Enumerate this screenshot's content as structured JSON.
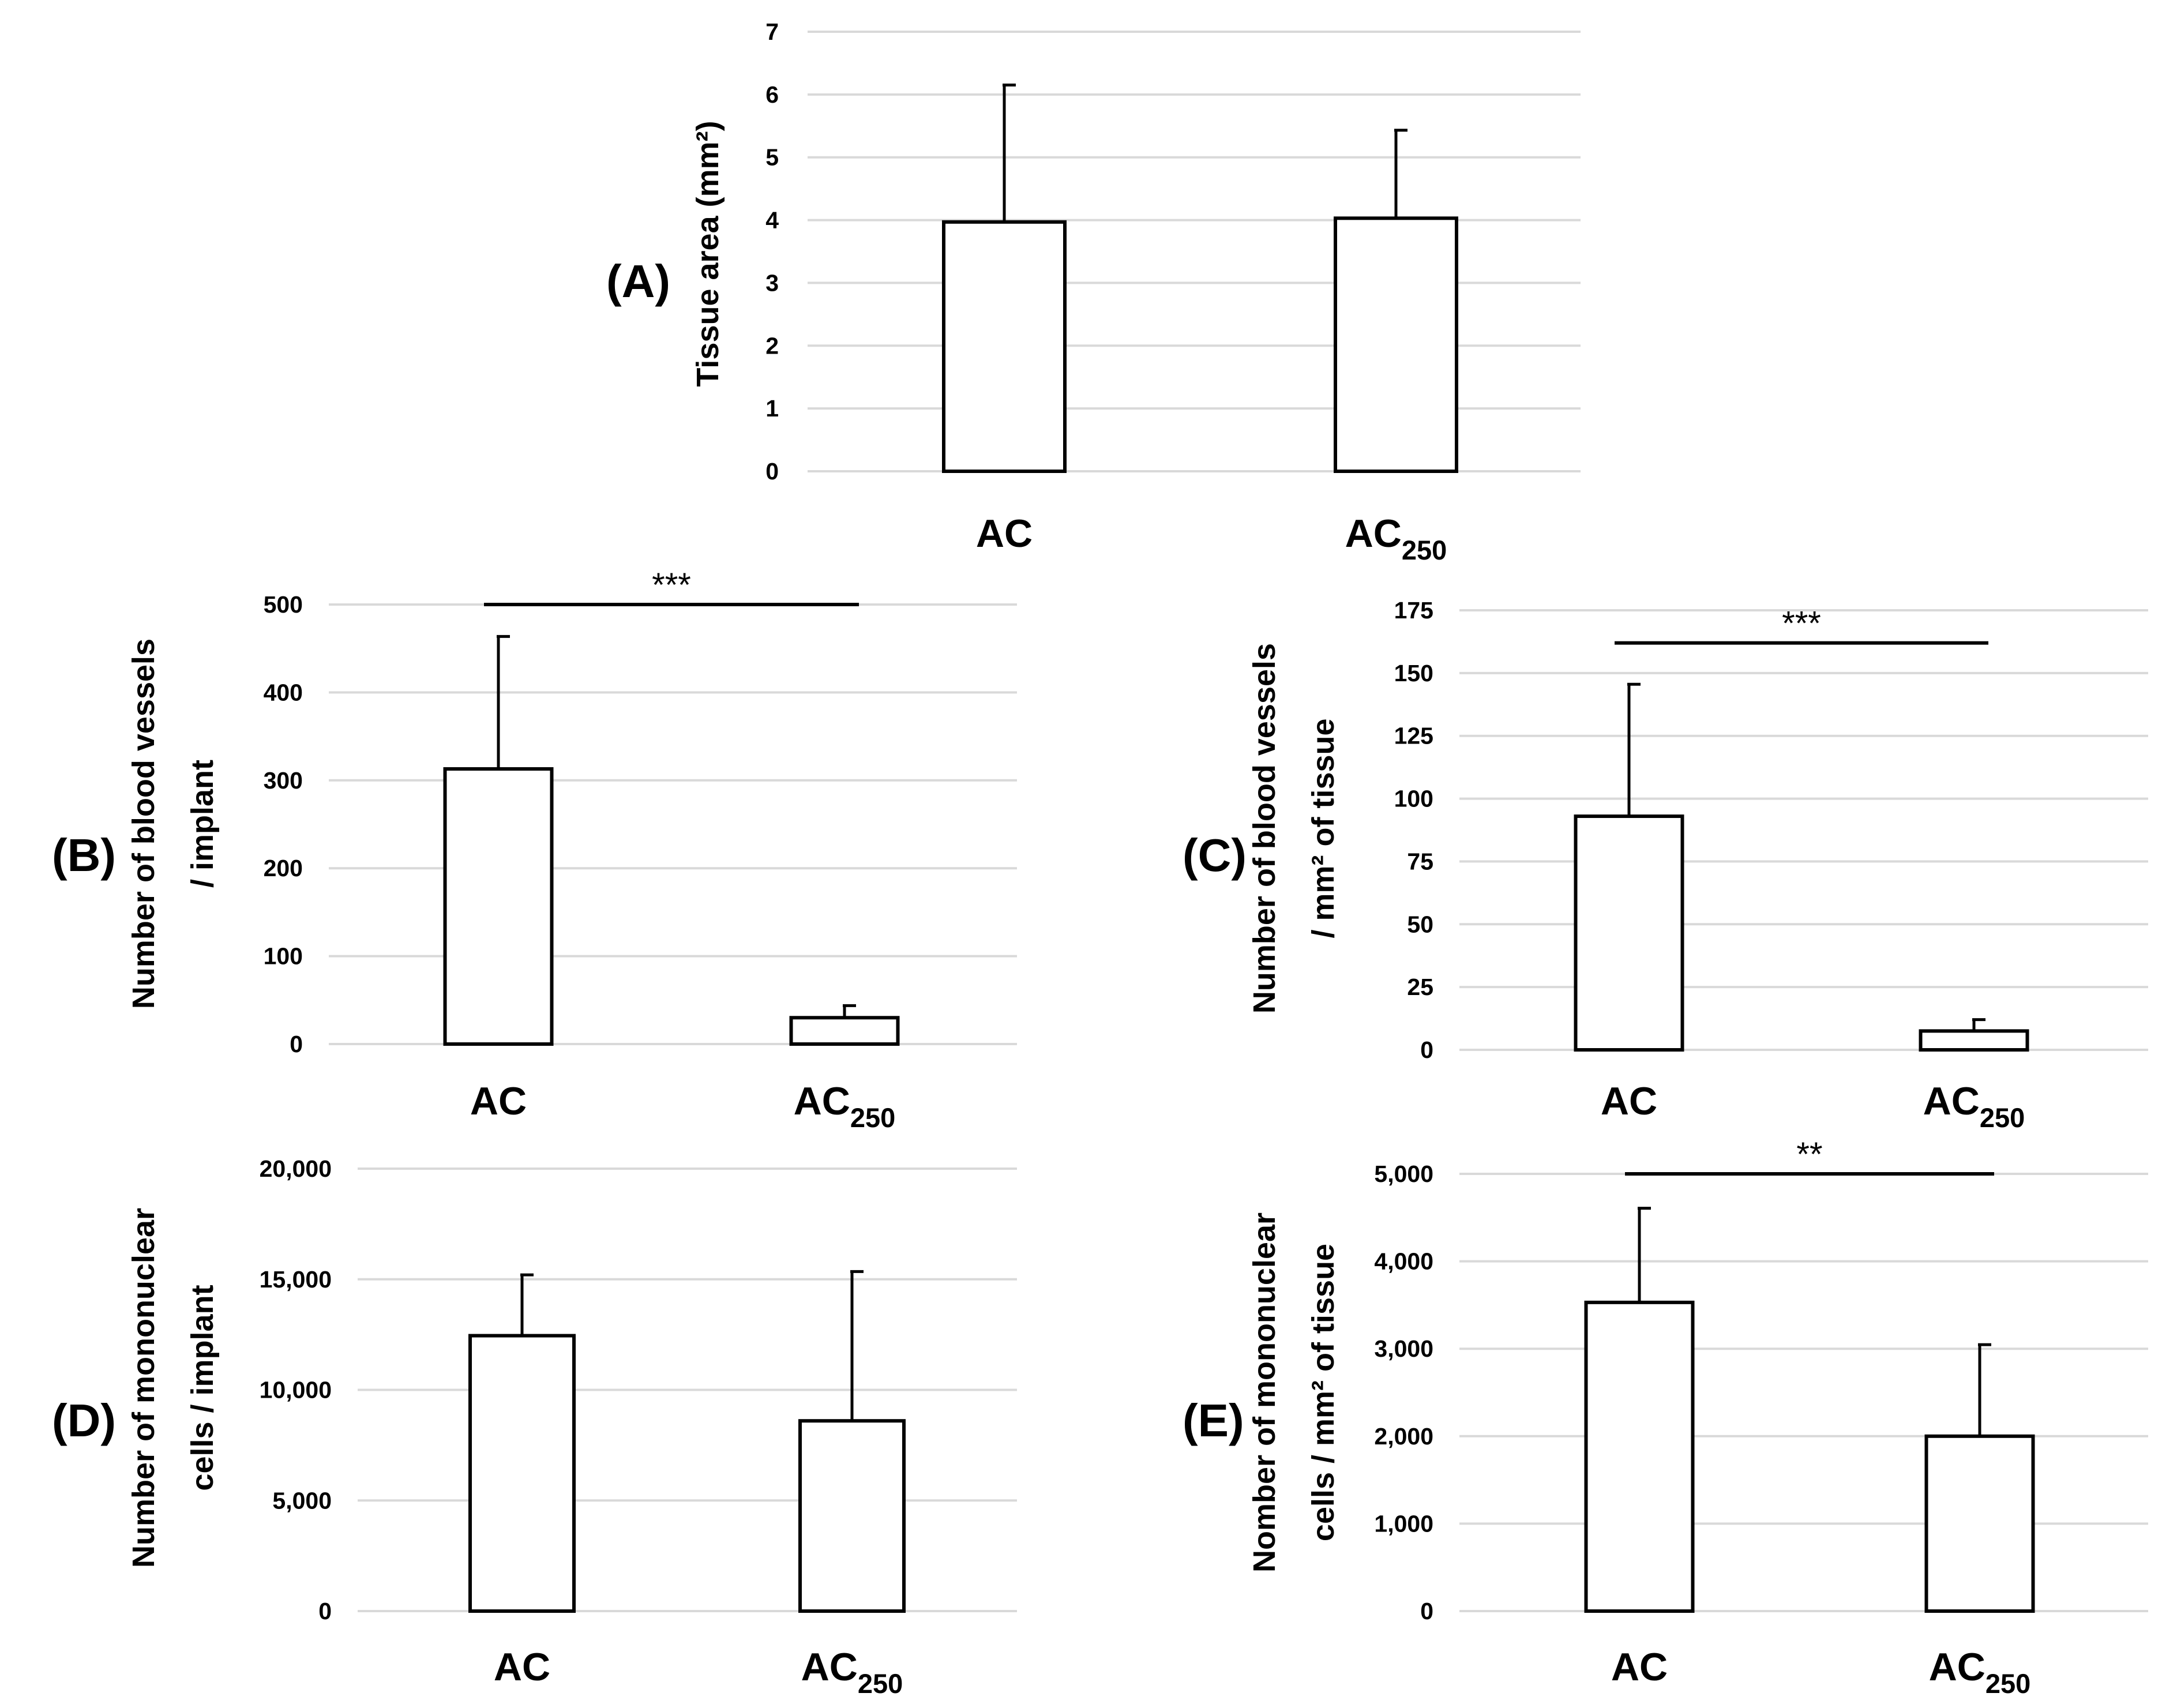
{
  "chart_data": [
    {
      "panel": "(A)",
      "type": "bar",
      "categories": [
        "AC",
        "AC250"
      ],
      "category_labels": [
        {
          "main": "AC",
          "sub": ""
        },
        {
          "main": "AC",
          "sub": "250"
        }
      ],
      "values": [
        3.97,
        4.03
      ],
      "errors": [
        2.2,
        1.42
      ],
      "ylabel": [
        "Tissue area (mm²)"
      ],
      "ylim": [
        0,
        7
      ],
      "ticks": [
        0,
        1,
        2,
        3,
        4,
        5,
        6,
        7
      ],
      "tick_labels": [
        "0",
        "1",
        "2",
        "3",
        "4",
        "5",
        "6",
        "7"
      ],
      "significance": null
    },
    {
      "panel": "(B)",
      "type": "bar",
      "categories": [
        "AC",
        "AC250"
      ],
      "category_labels": [
        {
          "main": "AC",
          "sub": ""
        },
        {
          "main": "AC",
          "sub": "250"
        }
      ],
      "values": [
        313,
        30
      ],
      "errors": [
        152,
        15
      ],
      "ylabel": [
        "Number of blood vessels",
        "/ implant"
      ],
      "ylim": [
        0,
        500
      ],
      "ticks": [
        0,
        100,
        200,
        300,
        400,
        500
      ],
      "tick_labels": [
        "0",
        "100",
        "200",
        "300",
        "400",
        "500"
      ],
      "significance": {
        "label": "***",
        "value": 500
      }
    },
    {
      "panel": "(C)",
      "type": "bar",
      "categories": [
        "AC",
        "AC250"
      ],
      "category_labels": [
        {
          "main": "AC",
          "sub": ""
        },
        {
          "main": "AC",
          "sub": "250"
        }
      ],
      "values": [
        93,
        7.5
      ],
      "errors": [
        53,
        5
      ],
      "ylabel": [
        "Number of blood vessels",
        "/ mm² of tissue"
      ],
      "ylim": [
        0,
        175
      ],
      "ticks": [
        0,
        25,
        50,
        75,
        100,
        125,
        150,
        175
      ],
      "tick_labels": [
        "0",
        "25",
        "50",
        "75",
        "100",
        "125",
        "150",
        "175"
      ],
      "significance": {
        "label": "***",
        "value": 162
      }
    },
    {
      "panel": "(D)",
      "type": "bar",
      "categories": [
        "AC",
        "AC250"
      ],
      "category_labels": [
        {
          "main": "AC",
          "sub": ""
        },
        {
          "main": "AC",
          "sub": "250"
        }
      ],
      "values": [
        12450,
        8600
      ],
      "errors": [
        2800,
        6800
      ],
      "ylabel": [
        "Number of mononuclear",
        "cells / implant"
      ],
      "ylim": [
        0,
        20000
      ],
      "ticks": [
        0,
        5000,
        10000,
        15000,
        20000
      ],
      "tick_labels": [
        "0",
        "5,000",
        "10,000",
        "15,000",
        "20,000"
      ],
      "significance": null
    },
    {
      "panel": "(E)",
      "type": "bar",
      "categories": [
        "AC",
        "AC250"
      ],
      "category_labels": [
        {
          "main": "AC",
          "sub": ""
        },
        {
          "main": "AC",
          "sub": "250"
        }
      ],
      "values": [
        3530,
        2000
      ],
      "errors": [
        1090,
        1060
      ],
      "ylabel": [
        "Nomber of mononuclear",
        "cells / mm² of tissue"
      ],
      "ylim": [
        0,
        5000
      ],
      "ticks": [
        0,
        1000,
        2000,
        3000,
        4000,
        5000
      ],
      "tick_labels": [
        "0",
        "1,000",
        "2,000",
        "3,000",
        "4,000",
        "5,000"
      ],
      "significance": {
        "label": "**",
        "value": 5000
      }
    }
  ]
}
